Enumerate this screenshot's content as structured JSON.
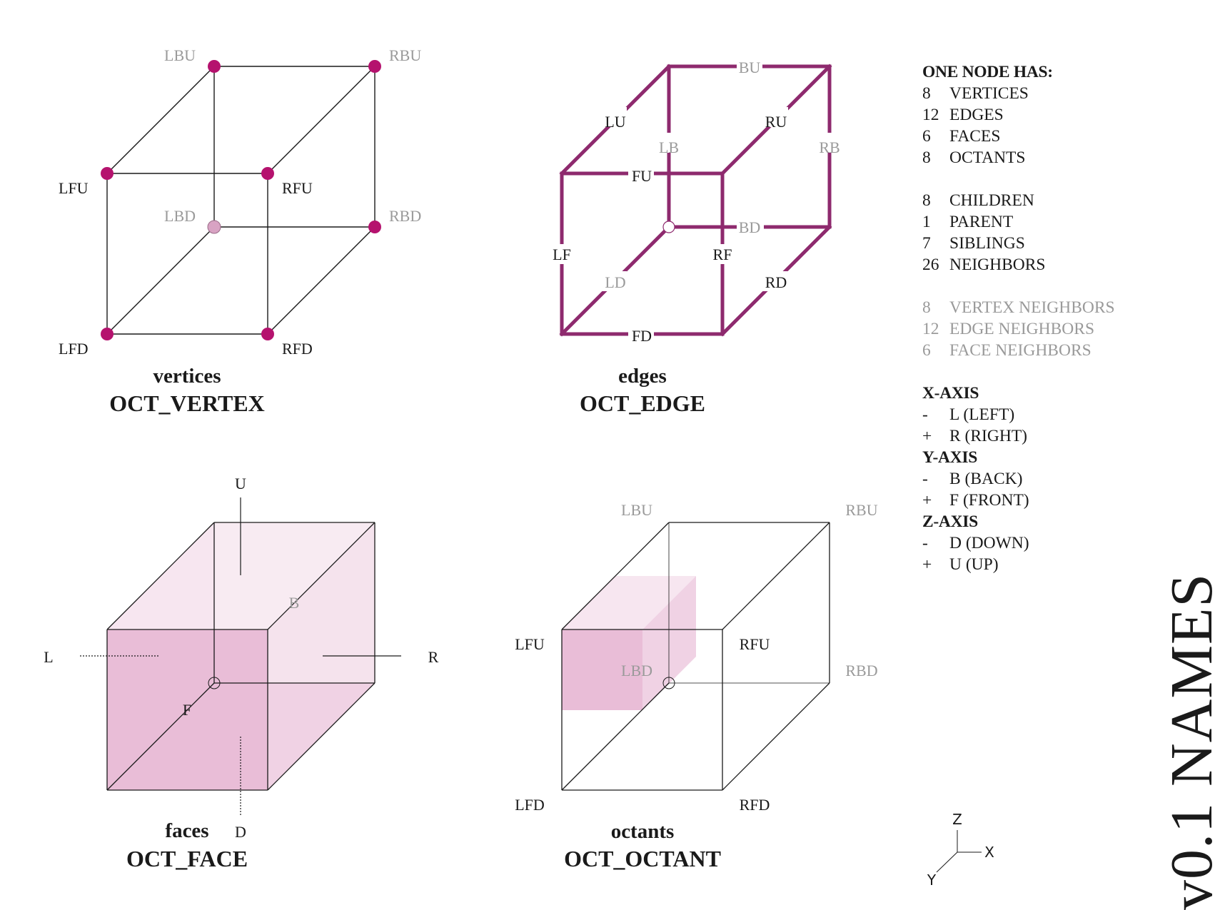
{
  "vertices_panel": {
    "caption": "vertices",
    "code": "OCT_VERTEX",
    "labels": {
      "LBU": "LBU",
      "RBU": "RBU",
      "LFU": "LFU",
      "RFU": "RFU",
      "LBD": "LBD",
      "RBD": "RBD",
      "LFD": "LFD",
      "RFD": "RFD"
    }
  },
  "edges_panel": {
    "caption": "edges",
    "code": "OCT_EDGE",
    "labels": {
      "BU": "BU",
      "LU": "LU",
      "RU": "RU",
      "LB": "LB",
      "RB": "RB",
      "FU": "FU",
      "BD": "BD",
      "LF": "LF",
      "RF": "RF",
      "LD": "LD",
      "RD": "RD",
      "FD": "FD"
    }
  },
  "faces_panel": {
    "caption": "faces",
    "code": "OCT_FACE",
    "labels": {
      "U": "U",
      "D": "D",
      "L": "L",
      "R": "R",
      "B": "B",
      "F": "F"
    }
  },
  "octants_panel": {
    "caption": "octants",
    "code": "OCT_OCTANT",
    "labels": {
      "LBU": "LBU",
      "RBU": "RBU",
      "LFU": "LFU",
      "RFU": "RFU",
      "LBD": "LBD",
      "RBD": "RBD",
      "LFD": "LFD",
      "RFD": "RFD"
    }
  },
  "legend": {
    "title": "ONE NODE HAS:",
    "counts": [
      {
        "n": "8",
        "label": "VERTICES"
      },
      {
        "n": "12",
        "label": "EDGES"
      },
      {
        "n": "6",
        "label": "FACES"
      },
      {
        "n": "8",
        "label": "OCTANTS"
      }
    ],
    "relations": [
      {
        "n": "8",
        "label": "CHILDREN"
      },
      {
        "n": "1",
        "label": "PARENT"
      },
      {
        "n": "7",
        "label": "SIBLINGS"
      },
      {
        "n": "26",
        "label": "NEIGHBORS"
      }
    ],
    "neighbors": [
      {
        "n": "8",
        "label": "VERTEX NEIGHBORS"
      },
      {
        "n": "12",
        "label": "EDGE NEIGHBORS"
      },
      {
        "n": "6",
        "label": "FACE NEIGHBORS"
      }
    ],
    "axes": [
      {
        "title": "X-AXIS",
        "minus": "L (LEFT)",
        "plus": "R (RIGHT)"
      },
      {
        "title": "Y-AXIS",
        "minus": "B (BACK)",
        "plus": "F (FRONT)"
      },
      {
        "title": "Z-AXIS",
        "minus": "D (DOWN)",
        "plus": "U (UP)"
      }
    ],
    "minus_sign": "-",
    "plus_sign": "+"
  },
  "axis_gizmo": {
    "z": "Z",
    "x": "X",
    "y": "Y"
  },
  "version_title": "v0.1 NAMES",
  "colors": {
    "accent": "#b5126e",
    "edge": "#8e2a6e",
    "face_fill": "#e6b4d2",
    "grey_text": "#9a9a9a"
  }
}
